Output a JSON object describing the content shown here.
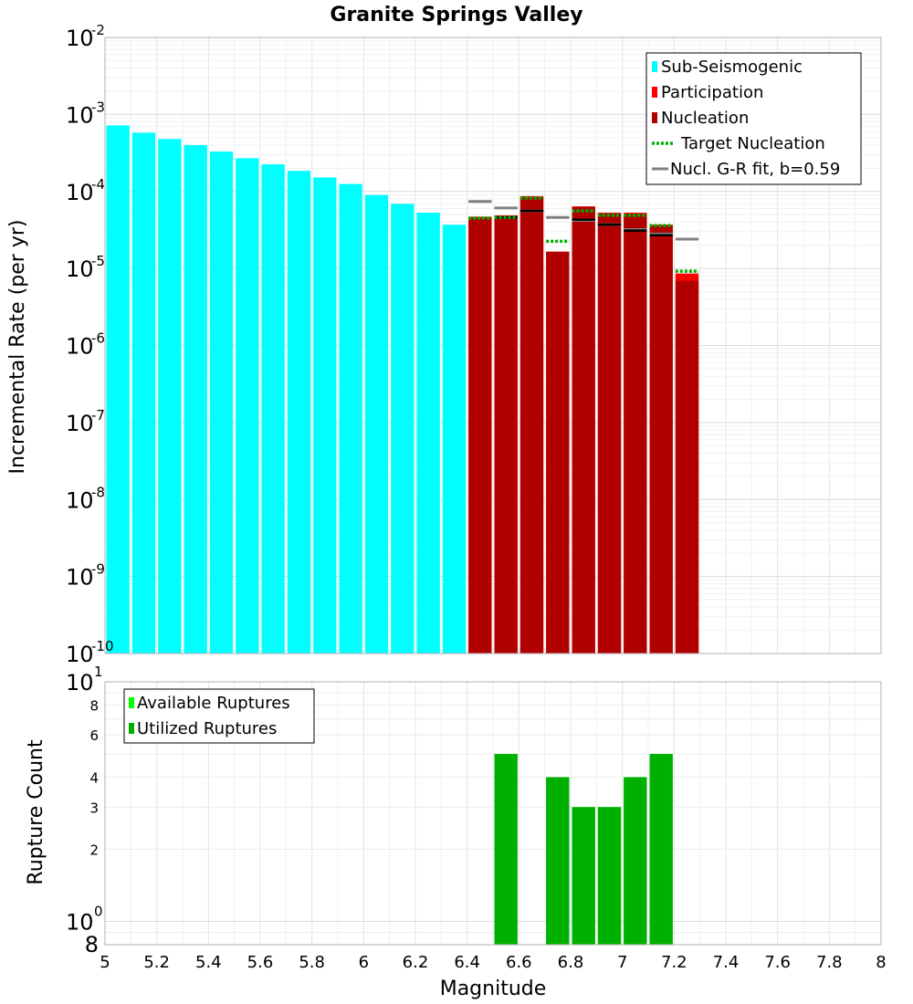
{
  "chart_data": [
    {
      "type": "bar",
      "title": "Granite Springs Valley",
      "xlabel": "",
      "ylabel": "Incremental Rate (per yr)",
      "yscale": "log",
      "ylim": [
        1e-10,
        0.01
      ],
      "xlim": [
        5,
        8
      ],
      "y_decade_labels": [
        {
          "base": "10",
          "exp": "-10",
          "value": 1e-10
        },
        {
          "base": "10",
          "exp": "-9",
          "value": 1e-09
        },
        {
          "base": "10",
          "exp": "-8",
          "value": 1e-08
        },
        {
          "base": "10",
          "exp": "-7",
          "value": 1e-07
        },
        {
          "base": "10",
          "exp": "-6",
          "value": 1e-06
        },
        {
          "base": "10",
          "exp": "-5",
          "value": 1e-05
        },
        {
          "base": "10",
          "exp": "-4",
          "value": 0.0001
        },
        {
          "base": "10",
          "exp": "-3",
          "value": 0.001
        },
        {
          "base": "10",
          "exp": "-2",
          "value": 0.01
        }
      ],
      "legend": {
        "position": "top-right",
        "entries": [
          {
            "label": "Sub-Seismogenic",
            "color": "#00ffff",
            "kind": "box"
          },
          {
            "label": "Participation",
            "color": "#ff0000",
            "kind": "box"
          },
          {
            "label": "Nucleation",
            "color": "#b00000",
            "kind": "box"
          },
          {
            "label": "Target Nucleation",
            "color": "#00b000",
            "kind": "dotted"
          },
          {
            "label": "Nucl. G-R fit, b=0.59",
            "color": "#808080",
            "kind": "line"
          }
        ]
      },
      "bar_width": 0.1,
      "series": [
        {
          "name": "Sub-Seismogenic",
          "color": "#00ffff",
          "x": [
            5.05,
            5.15,
            5.25,
            5.35,
            5.45,
            5.55,
            5.65,
            5.75,
            5.85,
            5.95,
            6.05,
            6.15,
            6.25,
            6.35
          ],
          "values": [
            0.00072,
            0.00058,
            0.00048,
            0.0004,
            0.00033,
            0.00027,
            0.000225,
            0.000185,
            0.000152,
            0.000125,
            9e-05,
            6.9e-05,
            5.3e-05,
            3.7e-05
          ]
        },
        {
          "name": "Participation",
          "color": "#ff0000",
          "x": [
            6.45,
            6.55,
            6.65,
            6.75,
            6.85,
            6.95,
            7.05,
            7.15,
            7.25
          ],
          "values": [
            4.7e-05,
            4.9e-05,
            8.7e-05,
            1.65e-05,
            6.4e-05,
            5.3e-05,
            5.3e-05,
            3.7e-05,
            8.6e-06
          ]
        },
        {
          "name": "Nucleation",
          "color": "#b00000",
          "x": [
            6.45,
            6.55,
            6.65,
            6.75,
            6.85,
            6.95,
            7.05,
            7.15,
            7.25
          ],
          "values": [
            4.6e-05,
            4.8e-05,
            8.4e-05,
            1.65e-05,
            6.3e-05,
            5.2e-05,
            5.1e-05,
            3.6e-05,
            6.9e-06
          ]
        },
        {
          "name": "Target Nucleation",
          "color": "#00b000",
          "x": [
            6.45,
            6.55,
            6.65,
            6.75,
            6.85,
            6.95,
            7.05,
            7.15,
            7.25
          ],
          "values": [
            4.5e-05,
            4.6e-05,
            8.2e-05,
            2.25e-05,
            5.6e-05,
            4.9e-05,
            4.9e-05,
            3.6e-05,
            9.2e-06
          ]
        },
        {
          "name": "Nucl. G-R fit, b=0.59",
          "color": "#808080",
          "x": [
            6.45,
            6.55,
            6.65,
            6.75,
            6.85,
            6.95,
            7.05,
            7.15,
            7.25
          ],
          "values": [
            7.4e-05,
            6.1e-05,
            5.6e-05,
            4.6e-05,
            4.2e-05,
            3.7e-05,
            3.2e-05,
            2.8e-05,
            2.4e-05
          ]
        },
        {
          "name": "Nucleation (black marker)",
          "color": "#000000",
          "x": [
            6.55,
            6.65,
            6.85,
            6.95,
            7.05,
            7.15
          ],
          "values": [
            4.6e-05,
            5.6e-05,
            4.3e-05,
            3.7e-05,
            3.1e-05,
            2.7e-05
          ]
        }
      ]
    },
    {
      "type": "bar",
      "title": "",
      "xlabel": "Magnitude",
      "ylabel": "Rupture Count",
      "yscale": "log",
      "ylim": [
        0.8,
        10
      ],
      "xlim": [
        5,
        8
      ],
      "x_ticks": [
        "5",
        "5.2",
        "5.4",
        "5.6",
        "5.8",
        "6",
        "6.2",
        "6.4",
        "6.6",
        "6.8",
        "7",
        "7.2",
        "7.4",
        "7.6",
        "7.8",
        "8"
      ],
      "y_minor_ticks": [
        {
          "label": "2",
          "value": 2
        },
        {
          "label": "3",
          "value": 3
        },
        {
          "label": "4",
          "value": 4
        },
        {
          "label": "6",
          "value": 6
        },
        {
          "label": "8",
          "value": 8
        }
      ],
      "y_decade_labels": [
        {
          "base": "10",
          "exp": "0",
          "value": 1
        },
        {
          "base": "10",
          "exp": "1",
          "value": 10
        }
      ],
      "y_bottom_label": "8",
      "legend": {
        "position": "top-left",
        "entries": [
          {
            "label": "Available Ruptures",
            "color": "#00ff00",
            "kind": "box"
          },
          {
            "label": "Utilized Ruptures",
            "color": "#00b000",
            "kind": "box"
          }
        ]
      },
      "bar_width": 0.1,
      "series": [
        {
          "name": "Available Ruptures",
          "color": "#00ff00",
          "x": [
            6.55,
            6.75,
            6.85,
            6.95,
            7.05,
            7.15
          ],
          "values": [
            5,
            4,
            3,
            3,
            4,
            5
          ]
        },
        {
          "name": "Utilized Ruptures",
          "color": "#00b000",
          "x": [
            6.55,
            6.75,
            6.85,
            6.95,
            7.05,
            7.15
          ],
          "values": [
            5,
            4,
            3,
            3,
            4,
            5
          ]
        }
      ]
    }
  ]
}
